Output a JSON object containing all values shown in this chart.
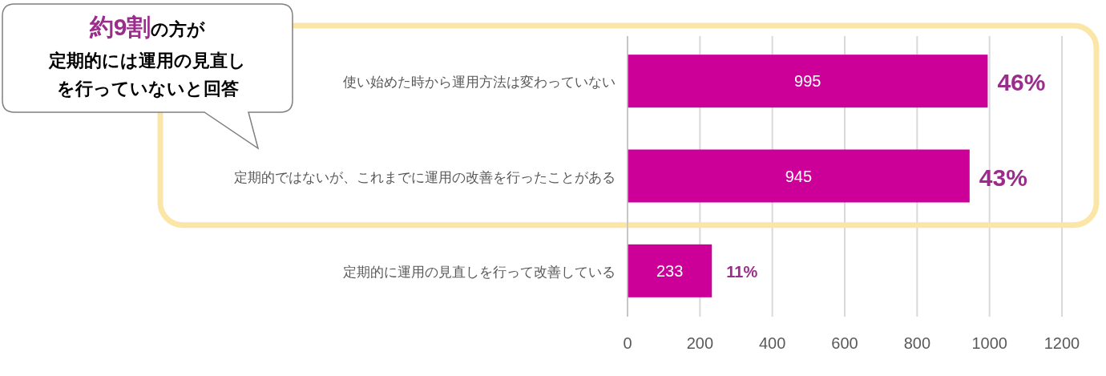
{
  "chart_data": {
    "type": "bar",
    "orientation": "horizontal",
    "categories": [
      "使い始めた時から運用方法は変わっていない",
      "定期的ではないが、これまでに運用の改善を行ったことがある",
      "定期的に運用の見直しを行って改善している"
    ],
    "values": [
      995,
      945,
      233
    ],
    "color": "#cc0099",
    "xlim": [
      0,
      1200
    ],
    "xticks": [
      0,
      200,
      400,
      600,
      800,
      1000,
      1200
    ],
    "grid": "x",
    "data_labels": true,
    "annotations": [
      {
        "text": "46%",
        "x": 995,
        "y": "使い始めた時から運用方法は変わっていない"
      },
      {
        "text": "43%",
        "x": 945,
        "y": "定期的ではないが、これまでに運用の改善を行ったことがある"
      },
      {
        "text": "11%",
        "x": 233,
        "y": "定期的に運用の見直しを行って改善している"
      },
      "約9割の方が",
      "定期的には運用の見直し",
      "を行っていないと回答"
    ]
  }
}
